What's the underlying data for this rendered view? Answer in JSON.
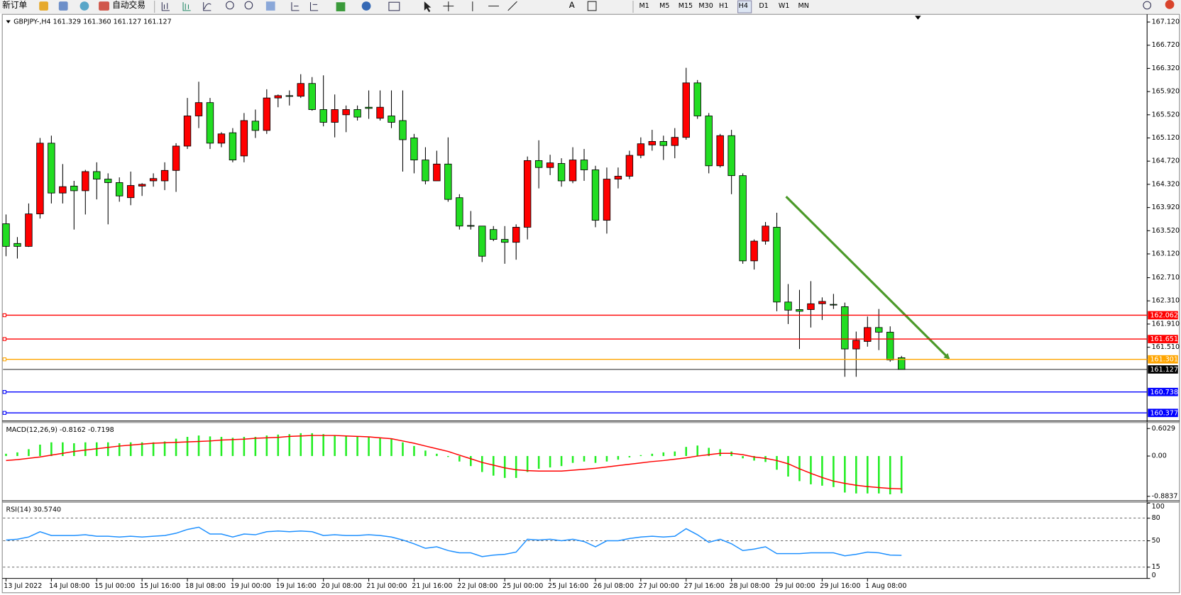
{
  "toolbar": {
    "buttons": [
      "新订单",
      "自动交易"
    ],
    "timeframes": [
      "M1",
      "M5",
      "M15",
      "M30",
      "H1",
      "H4",
      "D1",
      "W1",
      "MN"
    ]
  },
  "chart_data": [
    {
      "type": "candlestick",
      "label": "GBPJPY-,H4  161.329 161.360 161.127 161.127",
      "categories": [
        "13 Jul 2022",
        null,
        null,
        null,
        "14 Jul 08:00",
        null,
        null,
        null,
        "15 Jul 00:00",
        null,
        null,
        null,
        "15 Jul 16:00",
        null,
        null,
        null,
        "18 Jul 08:00",
        null,
        null,
        null,
        "19 Jul 00:00",
        null,
        null,
        null,
        "19 Jul 16:00",
        null,
        null,
        null,
        "20 Jul 08:00",
        null,
        null,
        null,
        "21 Jul 00:00",
        null,
        null,
        null,
        "21 Jul 16:00",
        null,
        null,
        null,
        "22 Jul 08:00",
        null,
        null,
        null,
        "25 Jul 00:00",
        null,
        null,
        null,
        "25 Jul 16:00",
        null,
        null,
        null,
        "26 Jul 08:00",
        null,
        null,
        null,
        "27 Jul 00:00",
        null,
        null,
        null,
        "27 Jul 16:00",
        null,
        null,
        null,
        "28 Jul 08:00",
        null,
        null,
        null,
        "29 Jul 00:00",
        null,
        null,
        null,
        "29 Jul 16:00",
        null,
        null,
        null,
        "1 Aug 08:00",
        null,
        null,
        null
      ],
      "open": [
        163.64,
        163.3,
        163.25,
        163.81,
        165.03,
        164.17,
        164.29,
        164.21,
        164.54,
        164.41,
        164.35,
        164.09,
        164.29,
        164.38,
        164.38,
        164.56,
        164.98,
        165.5,
        165.73,
        165.03,
        165.21,
        164.81,
        165.41,
        165.25,
        165.81,
        165.85,
        165.84,
        166.06,
        165.61,
        165.39,
        165.52,
        165.61,
        165.65,
        165.46,
        165.5,
        165.42,
        165.12,
        164.74,
        164.38,
        164.67,
        164.09,
        163.61,
        163.6,
        163.54,
        163.37,
        163.32,
        163.58,
        164.73,
        164.61,
        164.68,
        164.38,
        164.74,
        164.57,
        163.7,
        164.41,
        164.46,
        164.82,
        165.0,
        165.06,
        164.99,
        165.13,
        166.07,
        165.5,
        164.64,
        165.16,
        164.47,
        163.0,
        163.34,
        163.58,
        162.29,
        162.16,
        162.16,
        162.26,
        162.25,
        162.21,
        161.48,
        161.61,
        161.85,
        161.77,
        161.329
      ],
      "high": [
        163.8,
        163.41,
        163.99,
        165.12,
        165.16,
        164.67,
        164.38,
        164.57,
        164.7,
        164.51,
        164.44,
        164.54,
        164.34,
        164.51,
        164.7,
        165.03,
        165.81,
        166.09,
        165.81,
        165.22,
        165.29,
        165.55,
        165.61,
        165.96,
        165.87,
        165.94,
        166.22,
        166.17,
        166.2,
        165.87,
        165.68,
        165.68,
        165.94,
        165.94,
        165.94,
        165.94,
        165.19,
        164.96,
        164.9,
        165.13,
        164.15,
        163.86,
        163.6,
        163.6,
        163.6,
        163.63,
        164.8,
        165.08,
        164.83,
        164.77,
        164.96,
        164.93,
        164.64,
        164.61,
        164.61,
        164.9,
        165.13,
        165.26,
        165.16,
        165.29,
        166.33,
        166.12,
        165.55,
        165.19,
        165.26,
        164.51,
        163.37,
        163.67,
        163.83,
        162.6,
        162.5,
        162.65,
        162.37,
        162.43,
        162.28,
        161.78,
        162.04,
        162.17,
        161.87,
        161.36
      ],
      "low": [
        163.08,
        163.04,
        163.24,
        163.73,
        163.99,
        163.99,
        163.54,
        163.8,
        164.06,
        163.63,
        164.02,
        163.96,
        164.12,
        164.28,
        164.22,
        164.19,
        164.93,
        165.29,
        164.93,
        164.96,
        164.7,
        164.7,
        165.12,
        165.19,
        165.65,
        165.68,
        165.81,
        165.59,
        165.32,
        165.13,
        165.22,
        165.42,
        165.45,
        165.42,
        165.29,
        164.54,
        164.51,
        164.32,
        164.38,
        164.02,
        163.54,
        163.54,
        162.98,
        163.34,
        162.95,
        163.02,
        163.37,
        164.25,
        164.48,
        164.28,
        164.34,
        164.38,
        163.58,
        163.47,
        164.25,
        164.41,
        164.77,
        164.9,
        164.74,
        164.77,
        165.09,
        165.45,
        164.51,
        164.61,
        164.15,
        162.95,
        162.85,
        163.28,
        162.13,
        161.91,
        161.48,
        161.85,
        161.98,
        162.17,
        161.0,
        161.0,
        161.52,
        161.46,
        161.26,
        161.127
      ],
      "close": [
        163.25,
        163.25,
        163.81,
        165.03,
        164.17,
        164.28,
        164.21,
        164.54,
        164.41,
        164.35,
        164.12,
        164.3,
        164.32,
        164.42,
        164.56,
        164.98,
        165.5,
        165.73,
        165.03,
        165.19,
        164.74,
        165.42,
        165.25,
        165.81,
        165.85,
        165.84,
        166.06,
        165.61,
        165.39,
        165.61,
        165.61,
        165.48,
        165.63,
        165.65,
        165.39,
        165.09,
        164.74,
        164.38,
        164.67,
        164.06,
        163.6,
        163.6,
        163.08,
        163.37,
        163.32,
        163.58,
        164.73,
        164.61,
        164.69,
        164.38,
        164.74,
        164.57,
        163.7,
        164.41,
        164.46,
        164.82,
        165.02,
        165.06,
        164.99,
        165.13,
        166.07,
        165.5,
        164.64,
        165.16,
        164.47,
        163.0,
        163.34,
        163.6,
        162.29,
        162.15,
        162.13,
        162.26,
        162.3,
        162.24,
        161.48,
        161.63,
        161.85,
        161.77,
        161.29,
        161.127
      ],
      "up_color": "#ff0000",
      "down_color": "#22dd22",
      "ylim": [
        160.25,
        167.24
      ],
      "yticks": [
        {
          "value": 167.12,
          "label": "167.120"
        },
        {
          "value": 166.72,
          "label": "166.720"
        },
        {
          "value": 166.32,
          "label": "166.320"
        },
        {
          "value": 165.92,
          "label": "165.920"
        },
        {
          "value": 165.52,
          "label": "165.520"
        },
        {
          "value": 165.12,
          "label": "165.120"
        },
        {
          "value": 164.72,
          "label": "164.720"
        },
        {
          "value": 164.32,
          "label": "164.320"
        },
        {
          "value": 163.92,
          "label": "163.920"
        },
        {
          "value": 163.52,
          "label": "163.520"
        },
        {
          "value": 163.12,
          "label": "163.120"
        },
        {
          "value": 162.71,
          "label": "162.710"
        },
        {
          "value": 162.31,
          "label": "162.310"
        },
        {
          "value": 161.91,
          "label": "161.910"
        },
        {
          "value": 161.51,
          "label": "161.510"
        }
      ],
      "levels": [
        {
          "value": 162.062,
          "color": "#ff0000"
        },
        {
          "value": 161.651,
          "color": "#ff0000"
        },
        {
          "value": 161.301,
          "color": "#ffa500"
        },
        {
          "value": 161.127,
          "color": "#000000"
        },
        {
          "value": 160.738,
          "color": "#0000ff"
        },
        {
          "value": 160.377,
          "color": "#0000ff"
        }
      ]
    },
    {
      "type": "macd",
      "label": "MACD(12,26,9) -0.8162 -0.7198",
      "histogram": {
        "color": "#22ee22",
        "values": [
          0.05,
          0.08,
          0.15,
          0.25,
          0.3,
          0.3,
          0.28,
          0.3,
          0.3,
          0.3,
          0.28,
          0.3,
          0.3,
          0.3,
          0.32,
          0.38,
          0.42,
          0.45,
          0.43,
          0.42,
          0.4,
          0.42,
          0.42,
          0.45,
          0.47,
          0.48,
          0.5,
          0.5,
          0.48,
          0.46,
          0.44,
          0.43,
          0.42,
          0.4,
          0.37,
          0.3,
          0.22,
          0.12,
          0.05,
          -0.02,
          -0.12,
          -0.22,
          -0.35,
          -0.43,
          -0.48,
          -0.48,
          -0.35,
          -0.28,
          -0.25,
          -0.22,
          -0.15,
          -0.12,
          -0.15,
          -0.12,
          -0.08,
          -0.03,
          0.02,
          0.05,
          0.08,
          0.1,
          0.2,
          0.23,
          0.18,
          0.15,
          0.1,
          -0.05,
          -0.1,
          -0.13,
          -0.3,
          -0.45,
          -0.55,
          -0.62,
          -0.65,
          -0.68,
          -0.8,
          -0.82,
          -0.82,
          -0.82,
          -0.84,
          -0.8162
        ]
      },
      "signal": {
        "color": "#ff0000",
        "values": [
          -0.1,
          -0.08,
          -0.05,
          -0.02,
          0.02,
          0.06,
          0.1,
          0.13,
          0.16,
          0.19,
          0.22,
          0.24,
          0.26,
          0.28,
          0.29,
          0.3,
          0.31,
          0.32,
          0.33,
          0.35,
          0.36,
          0.37,
          0.39,
          0.4,
          0.41,
          0.43,
          0.44,
          0.45,
          0.45,
          0.45,
          0.44,
          0.43,
          0.42,
          0.4,
          0.38,
          0.33,
          0.28,
          0.22,
          0.16,
          0.1,
          0.02,
          -0.06,
          -0.14,
          -0.2,
          -0.26,
          -0.3,
          -0.32,
          -0.33,
          -0.33,
          -0.33,
          -0.31,
          -0.29,
          -0.27,
          -0.24,
          -0.21,
          -0.18,
          -0.15,
          -0.12,
          -0.1,
          -0.07,
          -0.04,
          0.0,
          0.03,
          0.06,
          0.06,
          0.03,
          -0.02,
          -0.05,
          -0.1,
          -0.17,
          -0.28,
          -0.38,
          -0.47,
          -0.55,
          -0.6,
          -0.64,
          -0.67,
          -0.69,
          -0.71,
          -0.7198
        ]
      },
      "ylim": [
        -0.966,
        0.718
      ],
      "yticks": [
        0.6029,
        {
          "value": 0,
          "label": "0.00"
        },
        -0.8837
      ]
    },
    {
      "type": "line",
      "label": "RSI(14) 30.5740",
      "color": "#1e90ff",
      "values": [
        51,
        52,
        55,
        62,
        57,
        57,
        57,
        58,
        56,
        56,
        55,
        56,
        55,
        56,
        57,
        60,
        65,
        68,
        59,
        59,
        55,
        59,
        58,
        62,
        63,
        62,
        63,
        62,
        57,
        58,
        57,
        57,
        58,
        57,
        55,
        51,
        46,
        40,
        42,
        37,
        34,
        34,
        29,
        31,
        32,
        35,
        52,
        51,
        52,
        50,
        52,
        49,
        42,
        50,
        50,
        53,
        55,
        56,
        55,
        56,
        66,
        58,
        48,
        52,
        46,
        37,
        39,
        42,
        33,
        33,
        33,
        34,
        34,
        34,
        30,
        32,
        35,
        34,
        31,
        30.574
      ],
      "ylim": [
        0,
        100
      ],
      "yticks": [
        0,
        15,
        50,
        80,
        100
      ]
    }
  ]
}
